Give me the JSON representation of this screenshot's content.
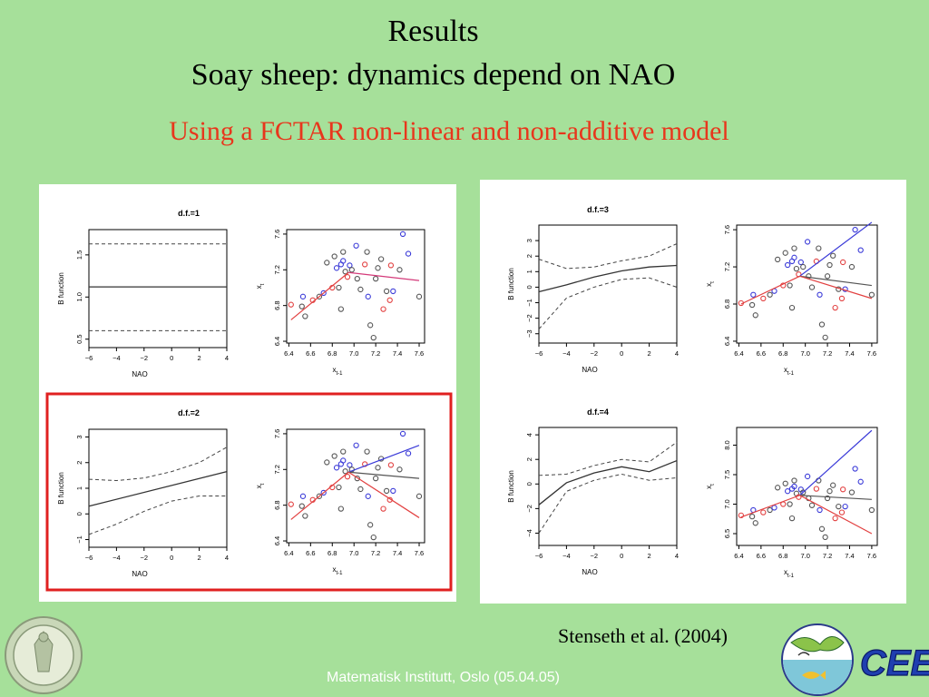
{
  "slide": {
    "title": "Results",
    "heading": "Soay sheep: dynamics depend on NAO",
    "subtitle": "Using a FCTAR non-linear and non-additive model",
    "citation": "Stenseth et al. (2004)",
    "footer": "Matematisk Institutt, Oslo (05.04.05)",
    "logo_text": "CEES",
    "colors": {
      "background": "#a6e09a",
      "subtitle": "#e8361c",
      "highlight": "#e02020",
      "blue": "#3a3ad8",
      "red": "#e24040",
      "grey": "#555555"
    }
  },
  "chart_data": [
    {
      "type": "line",
      "title": "d.f.=1",
      "xlabel": "NAO",
      "ylabel": "B function",
      "xlim": [
        -6,
        4
      ],
      "ylim": [
        0.4,
        1.8
      ],
      "xticks": [
        "−6",
        "−4",
        "−2",
        "0",
        "2",
        "4"
      ],
      "yticks": [
        "0.5",
        "1.0",
        "1.5"
      ],
      "series": [
        {
          "role": "estimate",
          "x": [
            -6,
            4
          ],
          "y": [
            1.12,
            1.12
          ]
        },
        {
          "role": "upper",
          "x": [
            -6,
            4
          ],
          "y": [
            1.63,
            1.63
          ]
        },
        {
          "role": "lower",
          "x": [
            -6,
            4
          ],
          "y": [
            0.6,
            0.6
          ]
        }
      ]
    },
    {
      "type": "scatter",
      "title": "",
      "xlabel": "x_{t-1}",
      "ylabel": "x_t",
      "xlim": [
        6.38,
        7.65
      ],
      "ylim": [
        6.38,
        7.65
      ],
      "xticks": [
        "6.4",
        "6.6",
        "6.8",
        "7.0",
        "7.2",
        "7.4",
        "7.6"
      ],
      "yticks": [
        "6.4",
        "6.8",
        "7.2",
        "7.6"
      ],
      "lines": [
        {
          "color": "#e24040",
          "x": [
            6.42,
            6.95
          ],
          "y": [
            6.64,
            7.17
          ]
        },
        {
          "color": "#d43a7a",
          "x": [
            6.95,
            7.6
          ],
          "y": [
            7.17,
            7.08
          ]
        }
      ]
    },
    {
      "type": "line",
      "title": "d.f.=2",
      "xlabel": "NAO",
      "ylabel": "B function",
      "xlim": [
        -6,
        4
      ],
      "ylim": [
        -1.3,
        3.3
      ],
      "xticks": [
        "−6",
        "−4",
        "−2",
        "0",
        "2",
        "4"
      ],
      "yticks": [
        "−1",
        "0",
        "1",
        "2",
        "3"
      ],
      "series": [
        {
          "role": "estimate",
          "x": [
            -6,
            4
          ],
          "y": [
            0.3,
            1.65
          ]
        },
        {
          "role": "upper",
          "x": [
            -6,
            -4,
            -2,
            0,
            2,
            4
          ],
          "y": [
            1.35,
            1.3,
            1.4,
            1.65,
            2.0,
            2.6
          ]
        },
        {
          "role": "lower",
          "x": [
            -6,
            -4,
            -2,
            0,
            2,
            4
          ],
          "y": [
            -0.8,
            -0.4,
            0.1,
            0.5,
            0.7,
            0.7
          ]
        }
      ]
    },
    {
      "type": "scatter",
      "title": "",
      "xlabel": "x_{t-1}",
      "ylabel": "x_t",
      "xlim": [
        6.38,
        7.65
      ],
      "ylim": [
        6.38,
        7.65
      ],
      "xticks": [
        "6.4",
        "6.6",
        "6.8",
        "7.0",
        "7.2",
        "7.4",
        "7.6"
      ],
      "yticks": [
        "6.4",
        "6.8",
        "7.2",
        "7.6"
      ],
      "lines": [
        {
          "color": "#e24040",
          "x": [
            6.42,
            6.95
          ],
          "y": [
            6.64,
            7.17
          ]
        },
        {
          "color": "#3a3ad8",
          "x": [
            6.95,
            7.6
          ],
          "y": [
            7.17,
            7.47
          ]
        },
        {
          "color": "#555555",
          "x": [
            6.95,
            7.6
          ],
          "y": [
            7.17,
            7.1
          ]
        },
        {
          "color": "#e24040",
          "x": [
            6.95,
            7.6
          ],
          "y": [
            7.17,
            6.66
          ]
        }
      ]
    },
    {
      "type": "line",
      "title": "d.f.=3",
      "xlabel": "NAO",
      "ylabel": "B function",
      "xlim": [
        -6,
        4
      ],
      "ylim": [
        -3.6,
        4.0
      ],
      "xticks": [
        "−6",
        "−4",
        "−2",
        "0",
        "2",
        "4"
      ],
      "yticks": [
        "−3",
        "−2",
        "−1",
        "0",
        "1",
        "2",
        "3"
      ],
      "series": [
        {
          "role": "estimate",
          "x": [
            -6,
            -4,
            -2,
            0,
            2,
            4
          ],
          "y": [
            -0.3,
            0.15,
            0.65,
            1.05,
            1.3,
            1.4
          ]
        },
        {
          "role": "upper",
          "x": [
            -6,
            -4,
            -2,
            0,
            2,
            4
          ],
          "y": [
            1.8,
            1.2,
            1.3,
            1.7,
            2.0,
            2.8
          ]
        },
        {
          "role": "lower",
          "x": [
            -6,
            -4,
            -2,
            0,
            2,
            4
          ],
          "y": [
            -2.7,
            -0.7,
            0.0,
            0.5,
            0.6,
            0.0
          ]
        }
      ]
    },
    {
      "type": "scatter",
      "title": "",
      "xlabel": "x_{t-1}",
      "ylabel": "x_t",
      "xlim": [
        6.38,
        7.65
      ],
      "ylim": [
        6.38,
        7.65
      ],
      "xticks": [
        "6.4",
        "6.6",
        "6.8",
        "7.0",
        "7.2",
        "7.4",
        "7.6"
      ],
      "yticks": [
        "6.4",
        "6.8",
        "7.2",
        "7.6"
      ],
      "lines": [
        {
          "color": "#e24040",
          "x": [
            6.42,
            6.95
          ],
          "y": [
            6.8,
            7.1
          ]
        },
        {
          "color": "#3a3ad8",
          "x": [
            6.95,
            7.6
          ],
          "y": [
            7.1,
            7.68
          ]
        },
        {
          "color": "#555555",
          "x": [
            6.95,
            7.6
          ],
          "y": [
            7.1,
            7.0
          ]
        },
        {
          "color": "#e24040",
          "x": [
            6.95,
            7.6
          ],
          "y": [
            7.1,
            6.86
          ]
        }
      ]
    },
    {
      "type": "line",
      "title": "d.f.=4",
      "xlabel": "NAO",
      "ylabel": "B function",
      "xlim": [
        -6,
        4
      ],
      "ylim": [
        -5.0,
        4.6
      ],
      "xticks": [
        "−6",
        "−4",
        "−2",
        "0",
        "2",
        "4"
      ],
      "yticks": [
        "−4",
        "−2",
        "0",
        "2",
        "4"
      ],
      "series": [
        {
          "role": "estimate",
          "x": [
            -6,
            -4,
            -2,
            0,
            2,
            4
          ],
          "y": [
            -1.7,
            0.1,
            0.9,
            1.4,
            1.0,
            1.9
          ]
        },
        {
          "role": "upper",
          "x": [
            -6,
            -4,
            -2,
            0,
            2,
            4
          ],
          "y": [
            0.7,
            0.8,
            1.5,
            2.0,
            1.8,
            3.4
          ]
        },
        {
          "role": "lower",
          "x": [
            -6,
            -4,
            -2,
            0,
            2,
            4
          ],
          "y": [
            -4.0,
            -0.6,
            0.3,
            0.8,
            0.3,
            0.5
          ]
        }
      ]
    },
    {
      "type": "scatter",
      "title": "",
      "xlabel": "x_{t-1}",
      "ylabel": "x_t",
      "xlim": [
        6.38,
        7.65
      ],
      "ylim": [
        6.3,
        8.3
      ],
      "xticks": [
        "6.4",
        "6.6",
        "6.8",
        "7.0",
        "7.2",
        "7.4",
        "7.6"
      ],
      "yticks": [
        "6.5",
        "7.0",
        "7.5",
        "8.0"
      ],
      "lines": [
        {
          "color": "#e24040",
          "x": [
            6.42,
            6.95
          ],
          "y": [
            6.78,
            7.15
          ]
        },
        {
          "color": "#3a3ad8",
          "x": [
            6.95,
            7.6
          ],
          "y": [
            7.15,
            8.25
          ]
        },
        {
          "color": "#555555",
          "x": [
            6.95,
            7.6
          ],
          "y": [
            7.15,
            7.08
          ]
        },
        {
          "color": "#e24040",
          "x": [
            6.95,
            7.6
          ],
          "y": [
            7.15,
            6.5
          ]
        }
      ]
    }
  ],
  "scatter_points": [
    {
      "x": 6.42,
      "y": 6.81,
      "c": "r"
    },
    {
      "x": 6.52,
      "y": 6.79,
      "c": "k"
    },
    {
      "x": 6.53,
      "y": 6.9,
      "c": "b"
    },
    {
      "x": 6.55,
      "y": 6.68,
      "c": "k"
    },
    {
      "x": 6.62,
      "y": 6.86,
      "c": "r"
    },
    {
      "x": 6.68,
      "y": 6.9,
      "c": "k"
    },
    {
      "x": 6.72,
      "y": 6.94,
      "c": "b"
    },
    {
      "x": 6.75,
      "y": 7.28,
      "c": "k"
    },
    {
      "x": 6.8,
      "y": 7.0,
      "c": "r"
    },
    {
      "x": 6.82,
      "y": 7.35,
      "c": "k"
    },
    {
      "x": 6.84,
      "y": 7.22,
      "c": "b"
    },
    {
      "x": 6.86,
      "y": 7.0,
      "c": "k"
    },
    {
      "x": 6.88,
      "y": 7.26,
      "c": "b"
    },
    {
      "x": 6.88,
      "y": 6.76,
      "c": "k"
    },
    {
      "x": 6.9,
      "y": 7.4,
      "c": "k"
    },
    {
      "x": 6.9,
      "y": 7.3,
      "c": "b"
    },
    {
      "x": 6.92,
      "y": 7.18,
      "c": "k"
    },
    {
      "x": 6.94,
      "y": 7.12,
      "c": "r"
    },
    {
      "x": 6.96,
      "y": 7.25,
      "c": "b"
    },
    {
      "x": 6.98,
      "y": 7.2,
      "c": "k"
    },
    {
      "x": 7.02,
      "y": 7.47,
      "c": "b"
    },
    {
      "x": 7.03,
      "y": 7.1,
      "c": "k"
    },
    {
      "x": 7.06,
      "y": 6.98,
      "c": "k"
    },
    {
      "x": 7.1,
      "y": 7.26,
      "c": "r"
    },
    {
      "x": 7.12,
      "y": 7.4,
      "c": "k"
    },
    {
      "x": 7.13,
      "y": 6.9,
      "c": "b"
    },
    {
      "x": 7.15,
      "y": 6.58,
      "c": "k"
    },
    {
      "x": 7.18,
      "y": 6.44,
      "c": "k"
    },
    {
      "x": 7.2,
      "y": 7.1,
      "c": "k"
    },
    {
      "x": 7.22,
      "y": 7.22,
      "c": "k"
    },
    {
      "x": 7.25,
      "y": 7.32,
      "c": "k"
    },
    {
      "x": 7.27,
      "y": 6.76,
      "c": "r"
    },
    {
      "x": 7.3,
      "y": 6.96,
      "c": "k"
    },
    {
      "x": 7.33,
      "y": 6.86,
      "c": "r"
    },
    {
      "x": 7.34,
      "y": 7.25,
      "c": "r"
    },
    {
      "x": 7.36,
      "y": 6.96,
      "c": "b"
    },
    {
      "x": 7.42,
      "y": 7.2,
      "c": "k"
    },
    {
      "x": 7.45,
      "y": 7.6,
      "c": "b"
    },
    {
      "x": 7.5,
      "y": 7.38,
      "c": "b"
    },
    {
      "x": 7.6,
      "y": 6.9,
      "c": "k"
    }
  ]
}
